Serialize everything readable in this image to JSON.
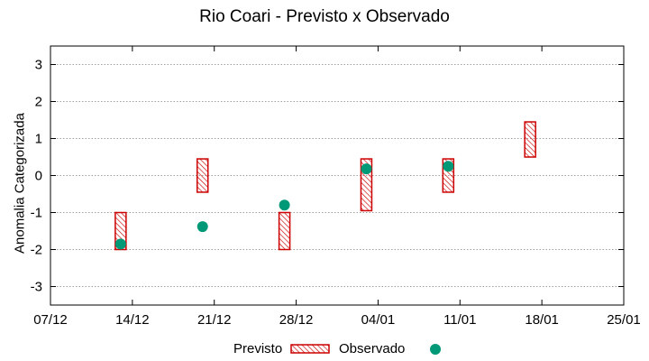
{
  "chart_data": {
    "type": "box",
    "title": "Rio Coari - Previsto x Observado",
    "xlabel": "",
    "ylabel": "Anomalia Categorizada",
    "xlim": [
      "2010-12-07",
      "2011-01-25"
    ],
    "ylim": [
      -3.5,
      3.5
    ],
    "x_ticks": [
      {
        "date": "2010-12-07",
        "label": "07/12"
      },
      {
        "date": "2010-12-14",
        "label": "14/12"
      },
      {
        "date": "2010-12-21",
        "label": "21/12"
      },
      {
        "date": "2010-12-28",
        "label": "28/12"
      },
      {
        "date": "2011-01-04",
        "label": "04/01"
      },
      {
        "date": "2011-01-11",
        "label": "11/01"
      },
      {
        "date": "2011-01-18",
        "label": "18/01"
      },
      {
        "date": "2011-01-25",
        "label": "25/01"
      }
    ],
    "y_ticks": [
      -3,
      -2,
      -1,
      0,
      1,
      2,
      3
    ],
    "grid": true,
    "legend_position": "bottom",
    "series": [
      {
        "name": "Previsto",
        "style": "hatched-box",
        "color": "#cc0000",
        "points": [
          {
            "x": "2010-12-13",
            "low": -2.0,
            "high": -1.0
          },
          {
            "x": "2010-12-20",
            "low": -0.45,
            "high": 0.45
          },
          {
            "x": "2010-12-27",
            "low": -2.0,
            "high": -1.0
          },
          {
            "x": "2011-01-03",
            "low": -0.95,
            "high": 0.45
          },
          {
            "x": "2011-01-10",
            "low": -0.45,
            "high": 0.45
          },
          {
            "x": "2011-01-17",
            "low": 0.5,
            "high": 1.45
          }
        ]
      },
      {
        "name": "Observado",
        "style": "point",
        "color": "#009977",
        "points": [
          {
            "x": "2010-12-13",
            "y": -1.85
          },
          {
            "x": "2010-12-20",
            "y": -1.38
          },
          {
            "x": "2010-12-27",
            "y": -0.8
          },
          {
            "x": "2011-01-03",
            "y": 0.18
          },
          {
            "x": "2011-01-10",
            "y": 0.25
          }
        ]
      }
    ]
  }
}
